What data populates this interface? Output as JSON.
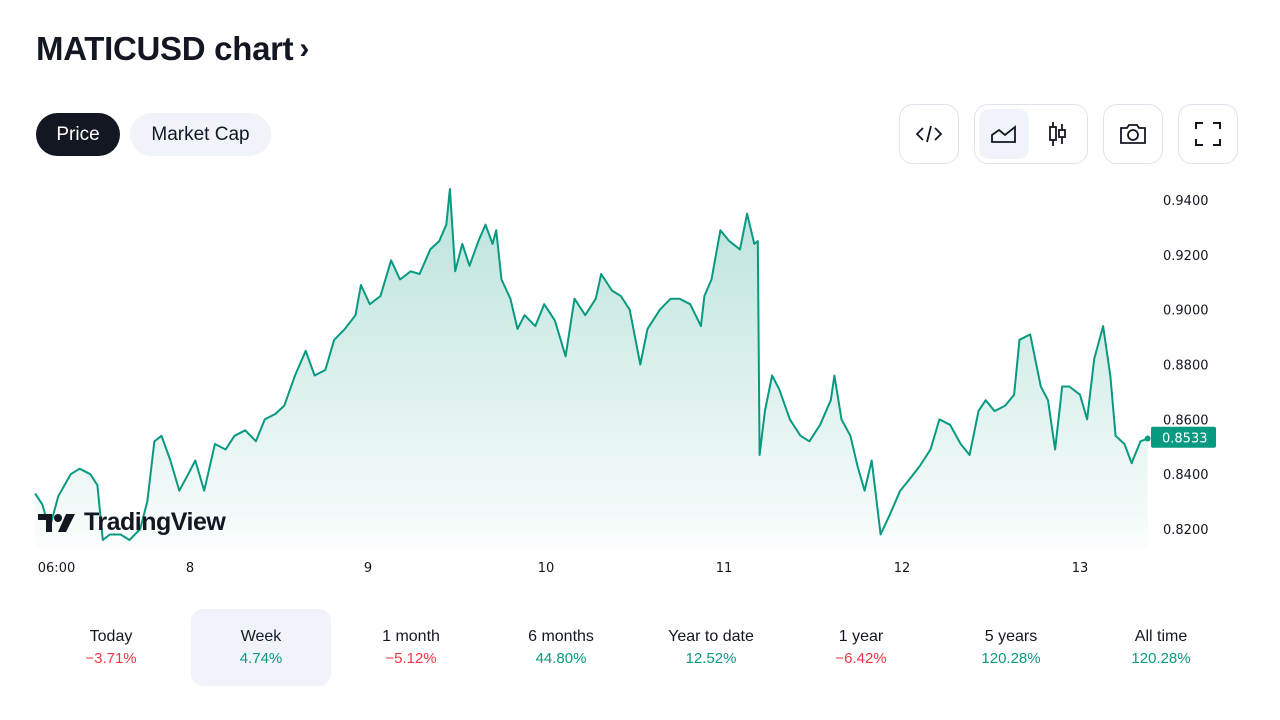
{
  "header": {
    "title": "MATICUSD chart",
    "chevron": "›"
  },
  "tabs": [
    {
      "label": "Price",
      "active": true
    },
    {
      "label": "Market Cap",
      "active": false
    }
  ],
  "toolbar": {
    "icons": [
      "embed-code-icon",
      "area-chart-icon",
      "candles-chart-icon",
      "camera-icon",
      "fullscreen-icon"
    ],
    "selected": "area-chart-icon"
  },
  "watermark": "TradingView",
  "colors": {
    "line": "#089981",
    "positive": "#089981",
    "negative": "#f23645",
    "label_bg": "#089981"
  },
  "chart_data": {
    "type": "area",
    "title": "MATICUSD",
    "x_unit": "day of month",
    "y_ticks": [
      "0.9400",
      "0.9200",
      "0.9000",
      "0.8800",
      "0.8600",
      "0.8400",
      "0.8200"
    ],
    "y_tick_values": [
      0.94,
      0.92,
      0.9,
      0.88,
      0.86,
      0.84,
      0.82
    ],
    "x_ticks": [
      {
        "label": "06:00",
        "value": 7.25
      },
      {
        "label": "8",
        "value": 8
      },
      {
        "label": "9",
        "value": 9
      },
      {
        "label": "10",
        "value": 10
      },
      {
        "label": "11",
        "value": 11
      },
      {
        "label": "12",
        "value": 12
      },
      {
        "label": "13",
        "value": 13
      }
    ],
    "last_price": "0.8533",
    "ylim": [
      0.81,
      0.945
    ],
    "x": [
      7.13,
      7.17,
      7.21,
      7.26,
      7.33,
      7.38,
      7.44,
      7.48,
      7.51,
      7.55,
      7.61,
      7.66,
      7.72,
      7.76,
      7.8,
      7.84,
      7.89,
      7.94,
      7.99,
      8.03,
      8.08,
      8.14,
      8.2,
      8.25,
      8.31,
      8.37,
      8.42,
      8.48,
      8.53,
      8.59,
      8.65,
      8.7,
      8.76,
      8.81,
      8.87,
      8.93,
      8.96,
      9.01,
      9.07,
      9.13,
      9.18,
      9.24,
      9.29,
      9.35,
      9.4,
      9.44,
      9.46,
      9.49,
      9.53,
      9.57,
      9.62,
      9.66,
      9.7,
      9.72,
      9.75,
      9.8,
      9.84,
      9.88,
      9.94,
      9.99,
      10.05,
      10.11,
      10.16,
      10.22,
      10.28,
      10.31,
      10.37,
      10.42,
      10.47,
      10.53,
      10.57,
      10.64,
      10.7,
      10.75,
      10.81,
      10.87,
      10.89,
      10.93,
      10.98,
      11.03,
      11.09,
      11.13,
      11.17,
      11.19,
      11.2,
      11.23,
      11.27,
      11.31,
      11.37,
      11.43,
      11.48,
      11.54,
      11.6,
      11.62,
      11.66,
      11.71,
      11.75,
      11.79,
      11.83,
      11.88,
      11.93,
      11.99,
      12.04,
      12.1,
      12.16,
      12.21,
      12.27,
      12.33,
      12.38,
      12.43,
      12.47,
      12.52,
      12.58,
      12.63,
      12.66,
      12.72,
      12.78,
      12.82,
      12.86,
      12.9,
      12.94,
      13.0,
      13.04,
      13.08,
      13.13,
      13.17,
      13.2,
      13.25,
      13.29,
      13.34,
      13.38
    ],
    "y": [
      0.833,
      0.829,
      0.82,
      0.832,
      0.84,
      0.842,
      0.84,
      0.836,
      0.816,
      0.818,
      0.818,
      0.816,
      0.82,
      0.83,
      0.852,
      0.854,
      0.845,
      0.834,
      0.84,
      0.845,
      0.834,
      0.851,
      0.849,
      0.854,
      0.856,
      0.852,
      0.86,
      0.862,
      0.865,
      0.876,
      0.885,
      0.876,
      0.878,
      0.889,
      0.893,
      0.898,
      0.909,
      0.902,
      0.905,
      0.918,
      0.911,
      0.914,
      0.913,
      0.922,
      0.925,
      0.931,
      0.944,
      0.914,
      0.924,
      0.916,
      0.925,
      0.931,
      0.924,
      0.929,
      0.911,
      0.904,
      0.893,
      0.898,
      0.894,
      0.902,
      0.896,
      0.883,
      0.904,
      0.898,
      0.904,
      0.913,
      0.907,
      0.905,
      0.9,
      0.88,
      0.893,
      0.9,
      0.904,
      0.904,
      0.902,
      0.894,
      0.905,
      0.911,
      0.929,
      0.925,
      0.922,
      0.935,
      0.924,
      0.925,
      0.847,
      0.863,
      0.876,
      0.871,
      0.86,
      0.854,
      0.852,
      0.858,
      0.867,
      0.876,
      0.86,
      0.854,
      0.843,
      0.834,
      0.845,
      0.818,
      0.825,
      0.834,
      0.838,
      0.843,
      0.849,
      0.86,
      0.858,
      0.851,
      0.847,
      0.863,
      0.867,
      0.863,
      0.865,
      0.869,
      0.889,
      0.891,
      0.872,
      0.867,
      0.849,
      0.872,
      0.872,
      0.869,
      0.86,
      0.882,
      0.894,
      0.876,
      0.854,
      0.851,
      0.844,
      0.852,
      0.853
    ]
  },
  "periods": [
    {
      "label": "Today",
      "value": "−3.71%",
      "dir": "neg"
    },
    {
      "label": "Week",
      "value": "4.74%",
      "dir": "pos",
      "selected": true
    },
    {
      "label": "1 month",
      "value": "−5.12%",
      "dir": "neg"
    },
    {
      "label": "6 months",
      "value": "44.80%",
      "dir": "pos"
    },
    {
      "label": "Year to date",
      "value": "12.52%",
      "dir": "pos"
    },
    {
      "label": "1 year",
      "value": "−6.42%",
      "dir": "neg"
    },
    {
      "label": "5 years",
      "value": "120.28%",
      "dir": "pos"
    },
    {
      "label": "All time",
      "value": "120.28%",
      "dir": "pos"
    }
  ]
}
